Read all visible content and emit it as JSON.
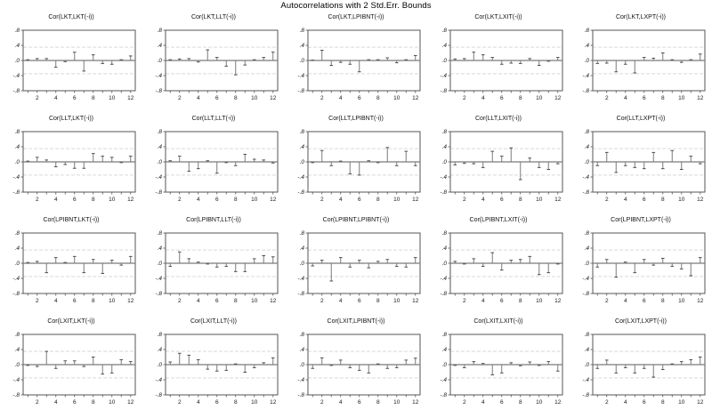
{
  "page": {
    "title": "Autocorrelations with 2 Std.Err. Bounds"
  },
  "chart_config": {
    "rows": 4,
    "cols": 5,
    "xlabel": "",
    "ylabel": "",
    "ylim": [
      -0.8,
      0.8
    ],
    "ytick_labels": [
      ".8",
      ".4",
      ".0",
      "-.4",
      "-.8"
    ],
    "ytick_values": [
      0.8,
      0.4,
      0.0,
      -0.4,
      -0.8
    ],
    "xtick_label_values": [
      2,
      4,
      6,
      8,
      10,
      12
    ],
    "lags": [
      1,
      2,
      3,
      4,
      5,
      6,
      7,
      8,
      9,
      10,
      11,
      12
    ],
    "stderr_bounds": [
      0.35,
      -0.35
    ],
    "grid": "stderr-bound-lines-only",
    "colors": {
      "frame": "#555555",
      "zero_line": "#7a7a7a",
      "bound_line": "#d9d9d9",
      "spike": "#7a7a7a",
      "spike_cap": "#4d4d4d",
      "tick_text": "#1a1a1a"
    }
  },
  "chart_data": [
    {
      "type": "bar",
      "title": "Cor(LKT,LKT(-i))",
      "x": [
        1,
        2,
        3,
        4,
        5,
        6,
        7,
        8,
        9,
        10,
        11,
        12
      ],
      "values": [
        0.02,
        0.05,
        0.05,
        -0.18,
        -0.03,
        0.22,
        -0.28,
        0.15,
        -0.08,
        -0.1,
        0.02,
        0.12
      ]
    },
    {
      "type": "bar",
      "title": "Cor(LKT,LLT(-i))",
      "x": [
        1,
        2,
        3,
        4,
        5,
        6,
        7,
        8,
        9,
        10,
        11,
        12
      ],
      "values": [
        0.02,
        0.04,
        0.05,
        -0.04,
        0.28,
        0.08,
        -0.15,
        -0.38,
        -0.12,
        0.02,
        0.08,
        0.22
      ]
    },
    {
      "type": "bar",
      "title": "Cor(LKT,LPIBNT(-i))",
      "x": [
        1,
        2,
        3,
        4,
        5,
        6,
        7,
        8,
        9,
        10,
        11,
        12
      ],
      "values": [
        0.01,
        0.27,
        -0.13,
        -0.05,
        -0.1,
        -0.3,
        0.02,
        0.02,
        0.07,
        -0.06,
        0.02,
        0.13
      ]
    },
    {
      "type": "bar",
      "title": "Cor(LKT,LXIT(-i))",
      "x": [
        1,
        2,
        3,
        4,
        5,
        6,
        7,
        8,
        9,
        10,
        11,
        12
      ],
      "values": [
        0.04,
        0.05,
        0.22,
        0.15,
        0.08,
        -0.1,
        -0.07,
        -0.08,
        0.05,
        -0.13,
        -0.02,
        0.08
      ]
    },
    {
      "type": "bar",
      "title": "Cor(LKT,LXPT(-i))",
      "x": [
        1,
        2,
        3,
        4,
        5,
        6,
        7,
        8,
        9,
        10,
        11,
        12
      ],
      "values": [
        -0.08,
        -0.07,
        -0.3,
        -0.1,
        -0.33,
        0.08,
        0.06,
        0.2,
        0.02,
        -0.05,
        0.02,
        0.17
      ]
    },
    {
      "type": "bar",
      "title": "Cor(LLT,LKT(-i))",
      "x": [
        1,
        2,
        3,
        4,
        5,
        6,
        7,
        8,
        9,
        10,
        11,
        12
      ],
      "values": [
        0.02,
        0.12,
        0.05,
        -0.13,
        -0.07,
        -0.17,
        -0.17,
        0.22,
        0.15,
        0.12,
        -0.02,
        0.15
      ]
    },
    {
      "type": "bar",
      "title": "Cor(LLT,LLT(-i))",
      "x": [
        1,
        2,
        3,
        4,
        5,
        6,
        7,
        8,
        9,
        10,
        11,
        12
      ],
      "values": [
        0.03,
        0.15,
        -0.25,
        -0.18,
        0.03,
        -0.3,
        -0.02,
        -0.1,
        0.2,
        0.07,
        0.05,
        -0.03
      ]
    },
    {
      "type": "bar",
      "title": "Cor(LLT,LPIBNT(-i))",
      "x": [
        1,
        2,
        3,
        4,
        5,
        6,
        7,
        8,
        9,
        10,
        11,
        12
      ],
      "values": [
        -0.02,
        0.3,
        -0.1,
        0.02,
        -0.32,
        -0.35,
        0.03,
        -0.02,
        0.38,
        -0.1,
        0.28,
        -0.1
      ]
    },
    {
      "type": "bar",
      "title": "Cor(LLT,LXIT(-i))",
      "x": [
        1,
        2,
        3,
        4,
        5,
        6,
        7,
        8,
        9,
        10,
        11,
        12
      ],
      "values": [
        -0.08,
        -0.04,
        -0.05,
        -0.15,
        0.28,
        0.15,
        0.37,
        -0.47,
        0.1,
        -0.15,
        -0.2,
        -0.05
      ]
    },
    {
      "type": "bar",
      "title": "Cor(LLT,LXPT(-i))",
      "x": [
        1,
        2,
        3,
        4,
        5,
        6,
        7,
        8,
        9,
        10,
        11,
        12
      ],
      "values": [
        -0.1,
        0.25,
        -0.28,
        -0.1,
        -0.15,
        -0.18,
        0.25,
        -0.18,
        0.3,
        -0.2,
        0.15,
        -0.05
      ]
    },
    {
      "type": "bar",
      "title": "Cor(LPIBNT,LKT(-i))",
      "x": [
        1,
        2,
        3,
        4,
        5,
        6,
        7,
        8,
        9,
        10,
        11,
        12
      ],
      "values": [
        0.02,
        0.05,
        -0.25,
        0.15,
        0.02,
        0.18,
        -0.25,
        0.1,
        -0.27,
        0.08,
        -0.05,
        0.18
      ]
    },
    {
      "type": "bar",
      "title": "Cor(LPIBNT,LLT(-i))",
      "x": [
        1,
        2,
        3,
        4,
        5,
        6,
        7,
        8,
        9,
        10,
        11,
        12
      ],
      "values": [
        -0.08,
        0.3,
        0.12,
        0.03,
        -0.02,
        -0.1,
        -0.08,
        -0.22,
        -0.22,
        0.12,
        0.2,
        0.17
      ]
    },
    {
      "type": "bar",
      "title": "Cor(LPIBNT,LPIBNT(-i))",
      "x": [
        1,
        2,
        3,
        4,
        5,
        6,
        7,
        8,
        9,
        10,
        11,
        12
      ],
      "values": [
        -0.07,
        0.08,
        -0.47,
        0.15,
        -0.1,
        0.08,
        -0.12,
        0.05,
        0.1,
        -0.08,
        -0.1,
        0.15
      ]
    },
    {
      "type": "bar",
      "title": "Cor(LPIBNT,LXIT(-i))",
      "x": [
        1,
        2,
        3,
        4,
        5,
        6,
        7,
        8,
        9,
        10,
        11,
        12
      ],
      "values": [
        0.05,
        -0.02,
        0.12,
        -0.08,
        0.28,
        -0.18,
        0.08,
        0.1,
        0.18,
        -0.3,
        -0.25,
        -0.02
      ]
    },
    {
      "type": "bar",
      "title": "Cor(LPIBNT,LXPT(-i))",
      "x": [
        1,
        2,
        3,
        4,
        5,
        6,
        7,
        8,
        9,
        10,
        11,
        12
      ],
      "values": [
        -0.1,
        0.1,
        -0.37,
        0.03,
        -0.25,
        0.1,
        -0.05,
        0.13,
        -0.08,
        -0.15,
        -0.33,
        0.15
      ]
    },
    {
      "type": "bar",
      "title": "Cor(LXIT,LKT(-i))",
      "x": [
        1,
        2,
        3,
        4,
        5,
        6,
        7,
        8,
        9,
        10,
        11,
        12
      ],
      "values": [
        -0.02,
        -0.05,
        0.35,
        -0.1,
        0.1,
        0.1,
        -0.05,
        0.2,
        -0.25,
        -0.22,
        0.13,
        0.08
      ]
    },
    {
      "type": "bar",
      "title": "Cor(LXIT,LLT(-i))",
      "x": [
        1,
        2,
        3,
        4,
        5,
        6,
        7,
        8,
        9,
        10,
        11,
        12
      ],
      "values": [
        0.07,
        0.3,
        0.25,
        0.13,
        -0.12,
        -0.17,
        -0.15,
        0.02,
        -0.2,
        -0.08,
        0.05,
        0.18
      ]
    },
    {
      "type": "bar",
      "title": "Cor(LXIT,LPIBNT(-i))",
      "x": [
        1,
        2,
        3,
        4,
        5,
        6,
        7,
        8,
        9,
        10,
        11,
        12
      ],
      "values": [
        -0.1,
        0.18,
        -0.02,
        0.12,
        -0.08,
        -0.15,
        -0.22,
        0.02,
        -0.1,
        -0.08,
        0.12,
        0.17
      ]
    },
    {
      "type": "bar",
      "title": "Cor(LXIT,LXIT(-i))",
      "x": [
        1,
        2,
        3,
        4,
        5,
        6,
        7,
        8,
        9,
        10,
        11,
        12
      ],
      "values": [
        -0.02,
        -0.08,
        0.08,
        0.03,
        -0.27,
        -0.22,
        0.05,
        -0.03,
        0.07,
        -0.02,
        0.08,
        -0.17
      ]
    },
    {
      "type": "bar",
      "title": "Cor(LXIT,LXPT(-i))",
      "x": [
        1,
        2,
        3,
        4,
        5,
        6,
        7,
        8,
        9,
        10,
        11,
        12
      ],
      "values": [
        -0.1,
        0.12,
        -0.22,
        -0.08,
        -0.22,
        -0.1,
        -0.33,
        -0.13,
        0.02,
        0.08,
        0.13,
        0.2
      ]
    }
  ]
}
